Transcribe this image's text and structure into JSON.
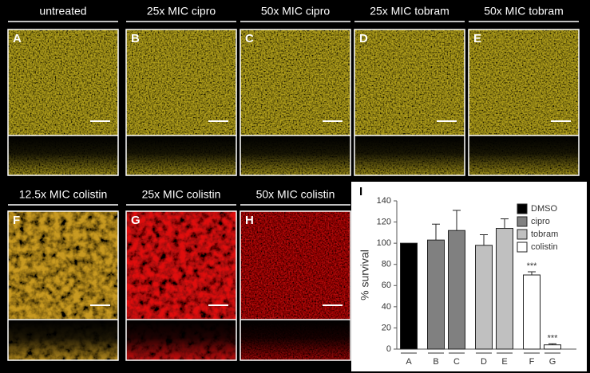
{
  "panels": [
    {
      "title": "untreated",
      "letter": "A",
      "color": "#b4a21c"
    },
    {
      "title": "25x MIC cipro",
      "letter": "B",
      "color": "#b4a21c"
    },
    {
      "title": "50x MIC cipro",
      "letter": "C",
      "color": "#b4a21c"
    },
    {
      "title": "25x MIC tobram",
      "letter": "D",
      "color": "#b4a21c"
    },
    {
      "title": "50x MIC tobram",
      "letter": "E",
      "color": "#b4a21c"
    },
    {
      "title": "12.5x MIC colistin",
      "letter": "F",
      "color": "#c89a20"
    },
    {
      "title": "25x MIC colistin",
      "letter": "G",
      "color": "#e01010"
    },
    {
      "title": "50x MIC colistin",
      "letter": "H",
      "color": "#b00808"
    }
  ],
  "chart_data": {
    "type": "bar",
    "panel_letter": "I",
    "y_label": "% survival",
    "categories": [
      "A",
      "B",
      "C",
      "D",
      "E",
      "F",
      "G"
    ],
    "series": [
      {
        "name": "DMSO",
        "color": "#000000",
        "values": [
          100,
          null,
          null,
          null,
          null,
          null,
          null
        ],
        "errors": [
          null,
          null,
          null,
          null,
          null,
          null,
          null
        ]
      },
      {
        "name": "cipro",
        "color": "#808080",
        "values": [
          null,
          103,
          112,
          null,
          null,
          null,
          null
        ],
        "errors": [
          null,
          15,
          19,
          null,
          null,
          null,
          null
        ]
      },
      {
        "name": "tobram",
        "color": "#c0c0c0",
        "values": [
          null,
          null,
          null,
          98,
          114,
          null,
          null
        ],
        "errors": [
          null,
          null,
          null,
          10,
          9,
          null,
          null
        ]
      },
      {
        "name": "colistin",
        "color": "#ffffff",
        "values": [
          null,
          null,
          null,
          null,
          null,
          70,
          4
        ],
        "errors": [
          null,
          null,
          null,
          null,
          null,
          3,
          1
        ]
      }
    ],
    "annotations": [
      {
        "text": "***",
        "category": "F"
      },
      {
        "text": "***",
        "category": "G"
      }
    ],
    "ylim": [
      0,
      140
    ],
    "yticks": [
      0,
      20,
      40,
      60,
      80,
      100,
      120,
      140
    ],
    "legend": "upper right"
  }
}
